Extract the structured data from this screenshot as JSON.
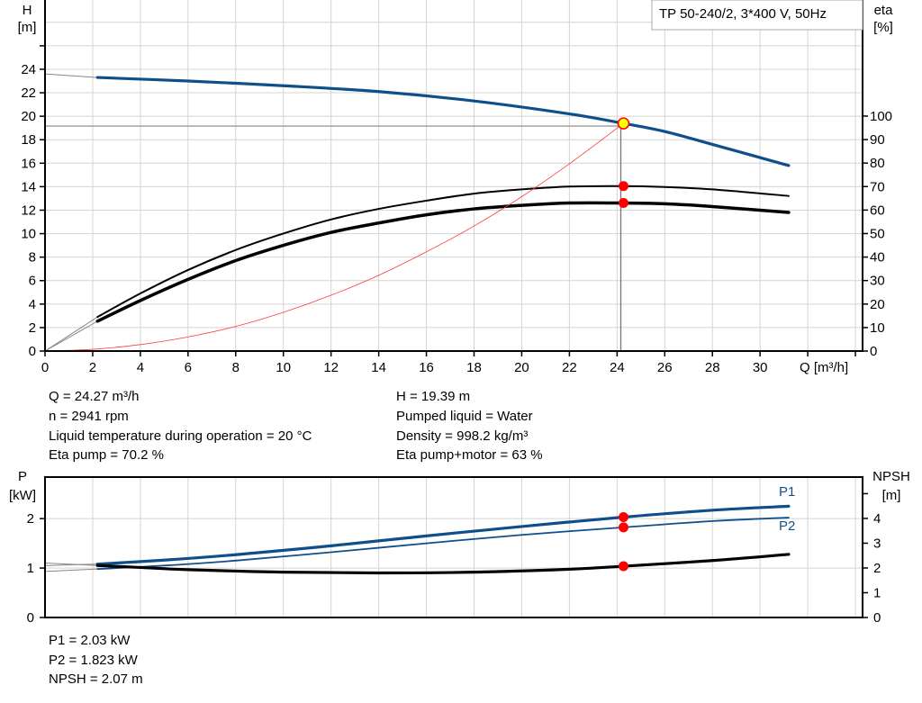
{
  "chart_data": [
    {
      "type": "line",
      "title": "TP 50-240/2, 3*400 V, 50Hz",
      "xlabel": "Q [m³/h]",
      "ylabel": "H",
      "yunit": "[m]",
      "y2label": "eta",
      "y2unit": "[%]",
      "xlim": [
        0,
        34.3
      ],
      "ylim": [
        0,
        29.9
      ],
      "y2lim": [
        0,
        149.4
      ],
      "xticks": [
        0,
        2,
        4,
        6,
        8,
        10,
        12,
        14,
        16,
        18,
        20,
        22,
        24,
        26,
        28,
        30
      ],
      "yticks": [
        0,
        2,
        4,
        6,
        8,
        10,
        12,
        14,
        16,
        18,
        20,
        22,
        24
      ],
      "y2ticks": [
        0,
        10,
        20,
        30,
        40,
        50,
        60,
        70,
        80,
        90,
        100
      ],
      "grid": true,
      "series": [
        {
          "id": "head",
          "axis": "y",
          "color": "#0e4f8b",
          "width": 3.2,
          "low_flow": [
            [
              0,
              23.6
            ],
            [
              2.2,
              23.3
            ]
          ],
          "points": [
            [
              2.2,
              23.3
            ],
            [
              6,
              23.0
            ],
            [
              10,
              22.6
            ],
            [
              14,
              22.1
            ],
            [
              18,
              21.3
            ],
            [
              22,
              20.2
            ],
            [
              24.27,
              19.39
            ],
            [
              26,
              18.7
            ],
            [
              28,
              17.6
            ],
            [
              31.2,
              15.8
            ]
          ]
        },
        {
          "id": "eta-pump",
          "axis": "y2",
          "color": "#000000",
          "width": 2,
          "low_flow": [
            [
              0,
              0
            ],
            [
              2.2,
              14.5
            ]
          ],
          "points": [
            [
              2.2,
              14.5
            ],
            [
              4,
              24.5
            ],
            [
              6,
              34.5
            ],
            [
              8,
              43
            ],
            [
              10,
              50
            ],
            [
              12,
              56
            ],
            [
              14,
              60.5
            ],
            [
              16,
              64
            ],
            [
              18,
              67
            ],
            [
              20,
              68.8
            ],
            [
              22,
              70
            ],
            [
              24.27,
              70.2
            ],
            [
              26,
              69.8
            ],
            [
              28,
              68.8
            ],
            [
              31.2,
              66
            ]
          ]
        },
        {
          "id": "eta-pump-motor",
          "axis": "y2",
          "color": "#000000",
          "width": 3.5,
          "low_flow": [
            [
              0,
              0
            ],
            [
              2.2,
              12.7
            ]
          ],
          "points": [
            [
              2.2,
              12.7
            ],
            [
              4,
              21.5
            ],
            [
              6,
              30.5
            ],
            [
              8,
              38.5
            ],
            [
              10,
              45
            ],
            [
              12,
              50.5
            ],
            [
              14,
              54.5
            ],
            [
              16,
              58
            ],
            [
              18,
              60.5
            ],
            [
              20,
              62
            ],
            [
              22,
              63
            ],
            [
              24.27,
              63
            ],
            [
              26,
              62.7
            ],
            [
              28,
              61.5
            ],
            [
              31.2,
              59
            ]
          ]
        },
        {
          "id": "system-curve",
          "axis": "y",
          "color": "#ff3b3b",
          "width": 0.8,
          "low_flow": [],
          "points": [
            [
              0,
              0
            ],
            [
              2,
              0.15
            ],
            [
              4,
              0.55
            ],
            [
              6,
              1.2
            ],
            [
              8,
              2.1
            ],
            [
              10,
              3.3
            ],
            [
              12,
              4.75
            ],
            [
              14,
              6.45
            ],
            [
              16,
              8.45
            ],
            [
              18,
              10.65
            ],
            [
              20,
              13.15
            ],
            [
              22,
              15.95
            ],
            [
              24.27,
              19.39
            ]
          ]
        }
      ],
      "operating_point": {
        "q": 24.27,
        "h": 19.39,
        "eta_pump": 70.2,
        "eta_pump_motor": 63,
        "marker_color": "#ffff00",
        "dot_color": "#ff0000"
      }
    },
    {
      "type": "line",
      "ylabel": "P",
      "yunit": "[kW]",
      "y2label": "NPSH",
      "y2unit": "[m]",
      "xlim": [
        0,
        34.3
      ],
      "ylim": [
        0,
        2.84
      ],
      "y2lim": [
        0,
        5.67
      ],
      "yticks": [
        0,
        1,
        2
      ],
      "y2ticks": [
        0,
        1,
        2,
        3,
        4,
        5
      ],
      "y2tick_labels": [
        "0",
        "1",
        "2",
        "3",
        "4",
        ""
      ],
      "grid": true,
      "series": [
        {
          "id": "p1",
          "name": "P1",
          "axis": "y",
          "color": "#0e4f8b",
          "width": 3.2,
          "low_flow": [
            [
              0,
              1.05
            ],
            [
              2.2,
              1.08
            ]
          ],
          "points": [
            [
              2.2,
              1.08
            ],
            [
              5,
              1.16
            ],
            [
              8,
              1.27
            ],
            [
              12,
              1.45
            ],
            [
              16,
              1.65
            ],
            [
              20,
              1.84
            ],
            [
              24.27,
              2.03
            ],
            [
              28,
              2.17
            ],
            [
              31.2,
              2.25
            ]
          ]
        },
        {
          "id": "p2",
          "name": "P2",
          "axis": "y",
          "color": "#0e4f8b",
          "width": 1.8,
          "low_flow": [
            [
              0,
              0.93
            ],
            [
              2.2,
              0.98
            ]
          ],
          "points": [
            [
              2.2,
              0.98
            ],
            [
              5,
              1.05
            ],
            [
              8,
              1.15
            ],
            [
              12,
              1.32
            ],
            [
              16,
              1.5
            ],
            [
              20,
              1.67
            ],
            [
              24.27,
              1.823
            ],
            [
              28,
              1.95
            ],
            [
              31.2,
              2.02
            ]
          ]
        },
        {
          "id": "npsh",
          "axis": "y2",
          "color": "#000000",
          "width": 3.2,
          "low_flow": [
            [
              0,
              2.2
            ],
            [
              2.2,
              2.1
            ]
          ],
          "points": [
            [
              2.2,
              2.1
            ],
            [
              4,
              2.02
            ],
            [
              6,
              1.93
            ],
            [
              10,
              1.83
            ],
            [
              14,
              1.8
            ],
            [
              18,
              1.83
            ],
            [
              22,
              1.95
            ],
            [
              24.27,
              2.07
            ],
            [
              28,
              2.3
            ],
            [
              31.2,
              2.55
            ]
          ]
        }
      ],
      "operating_point": {
        "q": 24.27,
        "p1": 2.03,
        "p2": 1.823,
        "npsh": 2.07,
        "dot_color": "#ff0000"
      }
    }
  ],
  "info_top": {
    "left": [
      "Q = 24.27 m³/h",
      "n = 2941 rpm",
      "Liquid temperature during operation = 20 °C",
      "Eta pump = 70.2 %"
    ],
    "right": [
      "H = 19.39 m",
      "Pumped liquid = Water",
      "Density = 998.2 kg/m³",
      "Eta pump+motor = 63 %"
    ]
  },
  "info_bottom": [
    "P1 = 2.03 kW",
    "P2 = 1.823 kW",
    "NPSH = 2.07 m"
  ]
}
